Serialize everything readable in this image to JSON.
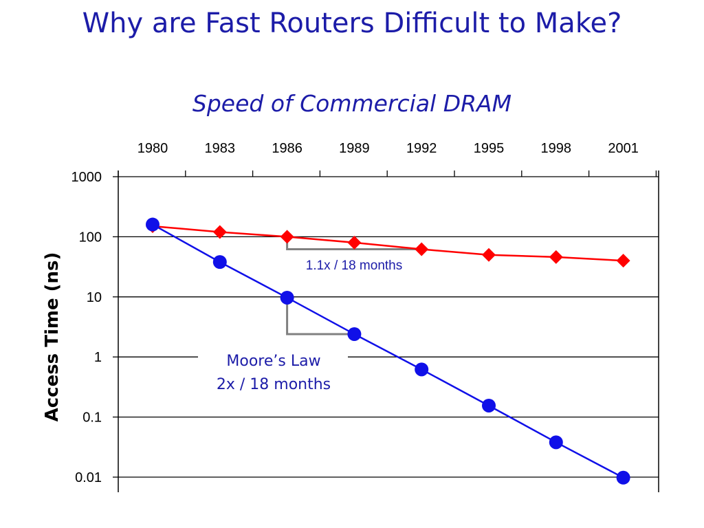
{
  "slide": {
    "title": "Why are Fast Routers Difficult to Make?",
    "subtitle": "Speed of Commercial DRAM"
  },
  "chart_data": {
    "type": "line",
    "title": "",
    "xlabel": "",
    "ylabel": "Access Time (ns)",
    "y_scale": "log",
    "ylim": [
      0.01,
      1000
    ],
    "x": [
      1980,
      1983,
      1986,
      1989,
      1992,
      1995,
      1998,
      2001
    ],
    "x_tick_labels": [
      "1980",
      "1983",
      "1986",
      "1989",
      "1992",
      "1995",
      "1998",
      "2001"
    ],
    "x_axis_position": "top",
    "y_ticks": [
      1000,
      100,
      10,
      1,
      0.1,
      0.01
    ],
    "y_tick_labels": [
      "1000",
      "100",
      "10",
      "1",
      "0.1",
      "0.01"
    ],
    "grid": "horizontal",
    "legend": "none",
    "series": [
      {
        "marker": "diamond",
        "color": "#ff0000",
        "values": [
          150,
          120,
          100,
          80,
          62,
          50,
          46,
          40
        ]
      },
      {
        "marker": "circle",
        "color": "#1010e8",
        "values": [
          160,
          38,
          9.7,
          2.4,
          0.62,
          0.155,
          0.038,
          0.0098
        ]
      }
    ],
    "annotations": [
      {
        "id": "dram",
        "lines": [
          "1.1x / 18 months"
        ],
        "slope_from_x": 1986,
        "slope_to_x": 1992,
        "series": 0
      },
      {
        "id": "moore",
        "lines": [
          "Moore’s Law",
          "2x / 18 months"
        ],
        "slope_from_x": 1986,
        "slope_to_x": 1989,
        "series": 1
      }
    ]
  }
}
